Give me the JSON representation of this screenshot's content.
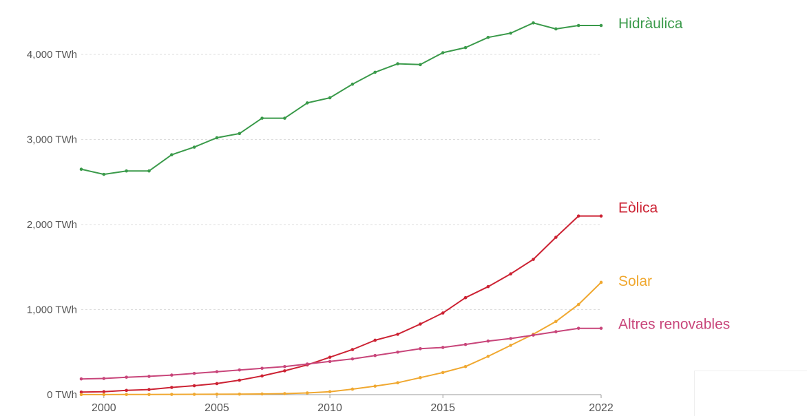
{
  "chart_data": {
    "type": "line",
    "title": "",
    "xlabel": "",
    "ylabel": "",
    "x": [
      1999,
      2000,
      2001,
      2002,
      2003,
      2004,
      2005,
      2006,
      2007,
      2008,
      2009,
      2010,
      2011,
      2012,
      2013,
      2014,
      2015,
      2016,
      2017,
      2018,
      2019,
      2020,
      2021,
      2022
    ],
    "xticks": [
      2000,
      2005,
      2010,
      2015,
      2022
    ],
    "xtick_labels": [
      "2000",
      "2005",
      "2010",
      "2015",
      "2022"
    ],
    "xlim": [
      1999,
      2022
    ],
    "ylim": [
      0,
      4500
    ],
    "yticks": [
      0,
      1000,
      2000,
      3000,
      4000
    ],
    "ytick_labels": [
      "0 TWh",
      "1,000 TWh",
      "2,000 TWh",
      "3,000 TWh",
      "4,000 TWh"
    ],
    "grid": true,
    "legend": "direct labels at line ends",
    "series": [
      {
        "name": "Hidràulica",
        "color": "#3a9a4a",
        "values": [
          2650,
          2590,
          2630,
          2630,
          2820,
          2910,
          3020,
          3070,
          3250,
          3250,
          3430,
          3490,
          3650,
          3790,
          3890,
          3880,
          4020,
          4080,
          4200,
          4250,
          4370,
          4300,
          4340,
          4340
        ]
      },
      {
        "name": "Eòlica",
        "color": "#cc2233",
        "values": [
          30,
          35,
          50,
          60,
          85,
          105,
          130,
          170,
          220,
          280,
          350,
          440,
          530,
          640,
          710,
          830,
          960,
          1140,
          1270,
          1420,
          1590,
          1850,
          2100,
          2100
        ]
      },
      {
        "name": "Solar",
        "color": "#f0a830",
        "values": [
          1,
          1,
          2,
          2,
          3,
          4,
          5,
          6,
          8,
          12,
          20,
          35,
          65,
          100,
          140,
          200,
          260,
          330,
          450,
          580,
          710,
          860,
          1060,
          1320
        ]
      },
      {
        "name": "Altres renovables",
        "color": "#c8457a",
        "values": [
          185,
          190,
          205,
          215,
          230,
          250,
          270,
          290,
          310,
          330,
          360,
          390,
          420,
          460,
          500,
          540,
          555,
          590,
          630,
          660,
          700,
          740,
          780,
          780
        ]
      }
    ]
  }
}
